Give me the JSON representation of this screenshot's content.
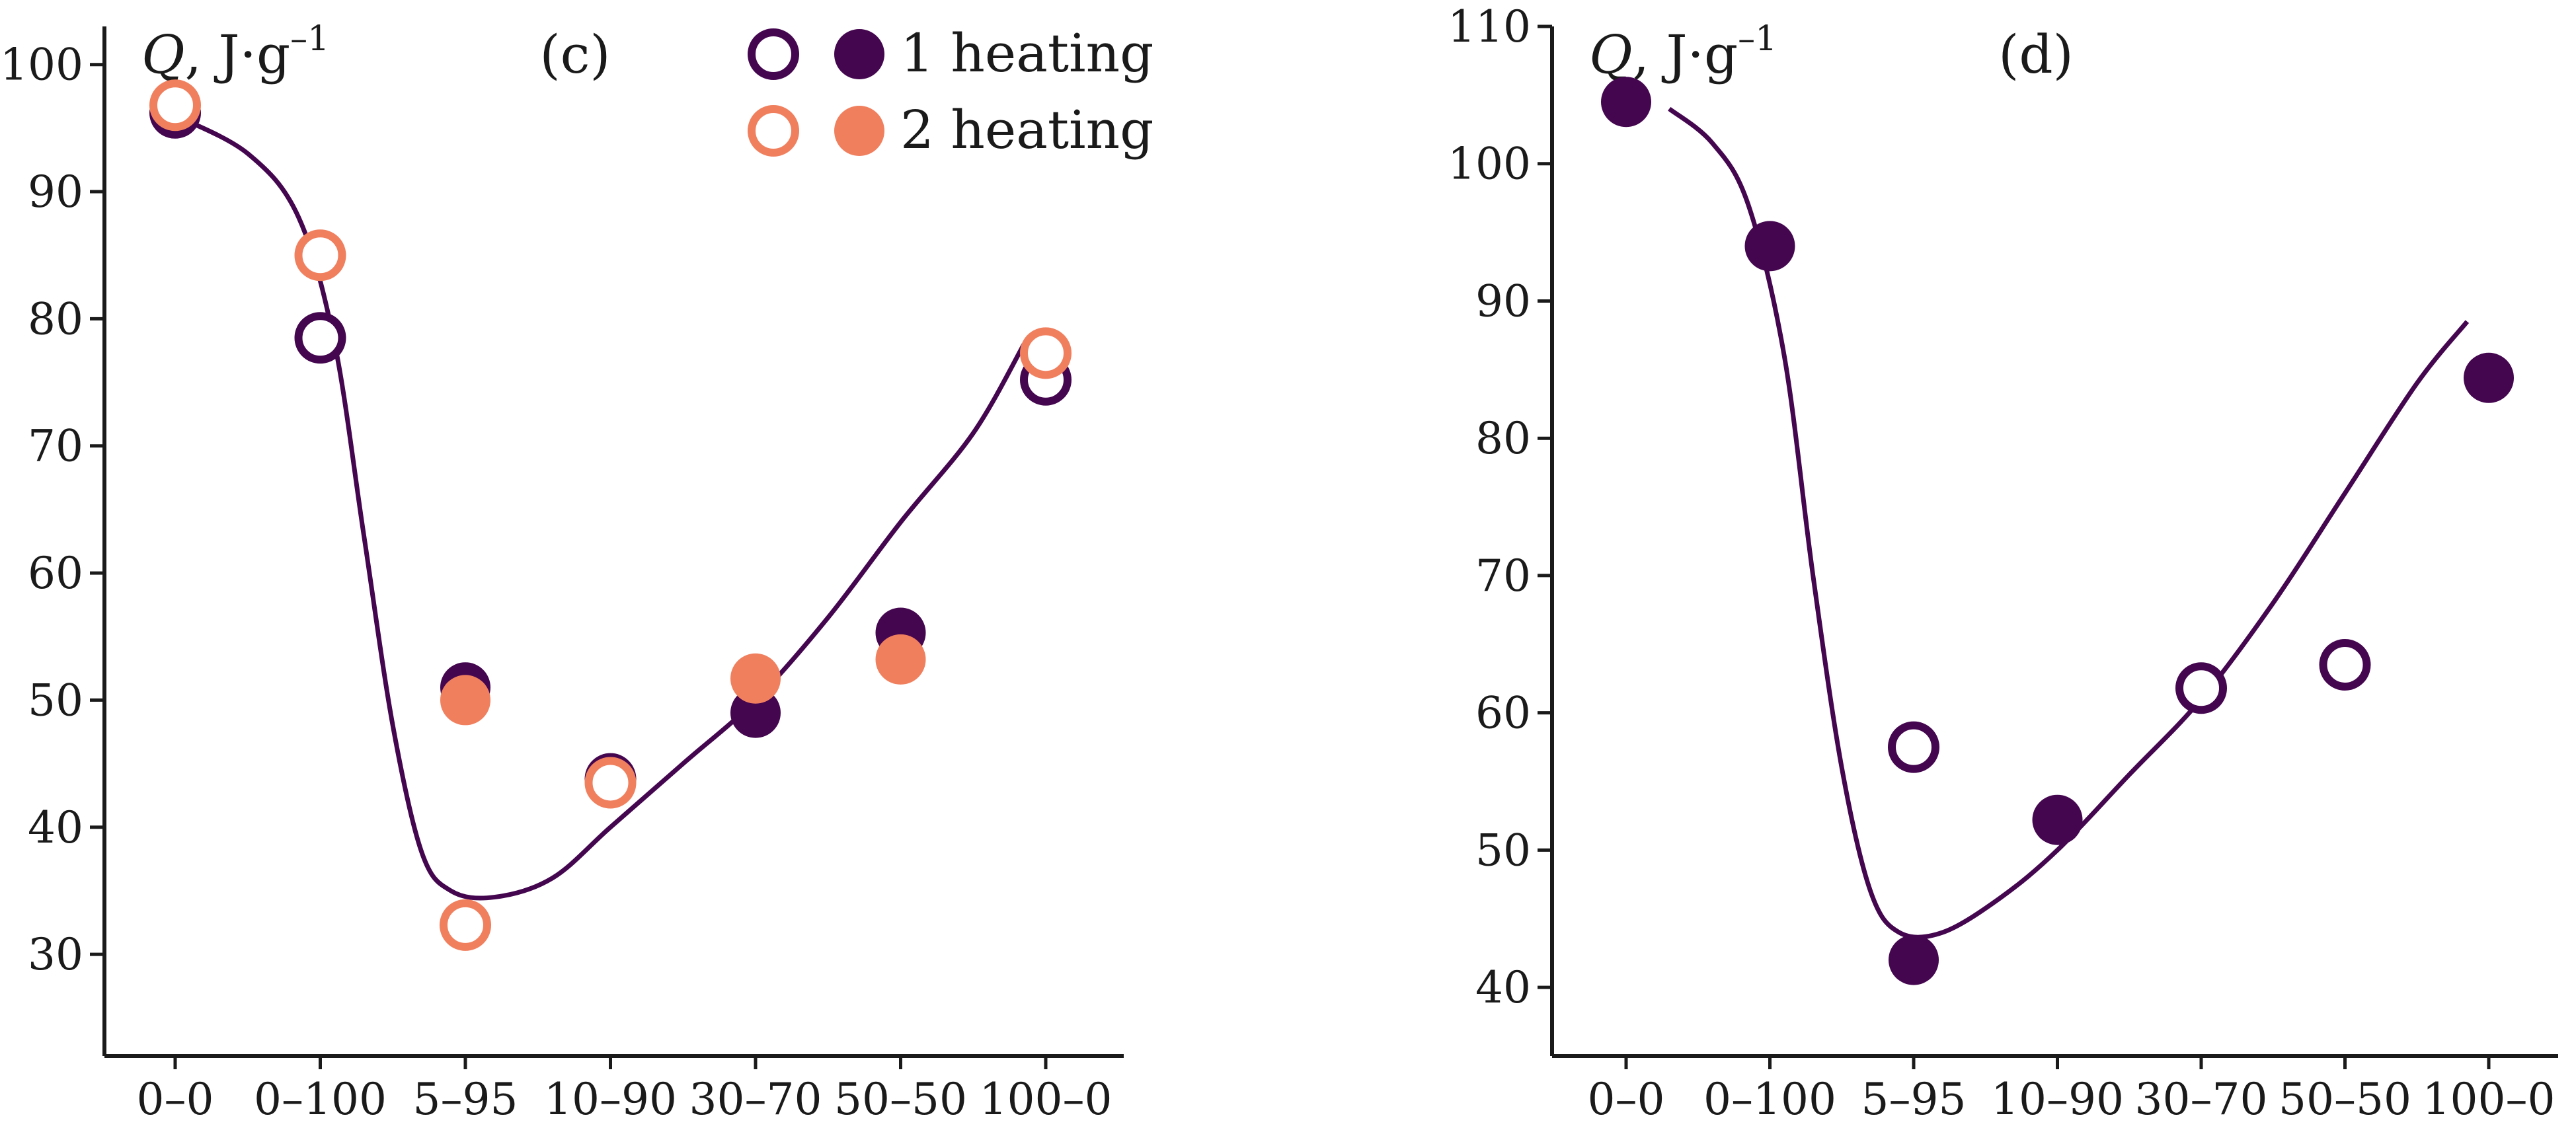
{
  "colors": {
    "series1": "#44064f",
    "series2": "#f07f5e",
    "axis": "#1a1a1a"
  },
  "legend": {
    "items": [
      {
        "label": "1 heating",
        "color": "#44064f"
      },
      {
        "label": "2 heating",
        "color": "#f07f5e"
      }
    ]
  },
  "chart_data": [
    {
      "type": "scatter",
      "panel_label": "(c)",
      "ylabel_q": "Q",
      "ylabel_unit": ", J·g",
      "ylabel_exp": "–1",
      "categories": [
        "0–0",
        "0–100",
        "5–95",
        "10–90",
        "30–70",
        "50–50",
        "100–0"
      ],
      "yticks": [
        30,
        40,
        50,
        60,
        70,
        80,
        90,
        100
      ],
      "ylim": [
        22,
        103
      ],
      "series": [
        {
          "name": "1 heating",
          "color": "#44064f",
          "open": [
            {
              "x": "0–0",
              "y": 96.2
            },
            {
              "x": "0–100",
              "y": 78.5
            },
            {
              "x": "10–90",
              "y": 43.8
            },
            {
              "x": "100–0",
              "y": 75.2
            }
          ],
          "filled": [
            {
              "x": "5–95",
              "y": 51
            },
            {
              "x": "30–70",
              "y": 49
            },
            {
              "x": "50–50",
              "y": 55.3
            }
          ]
        },
        {
          "name": "2 heating",
          "color": "#f07f5e",
          "open": [
            {
              "x": "0–0",
              "y": 96.8
            },
            {
              "x": "0–100",
              "y": 85
            },
            {
              "x": "5–95",
              "y": 32.3
            },
            {
              "x": "10–90",
              "y": 43.5
            },
            {
              "x": "100–0",
              "y": 77.3
            }
          ],
          "filled": [
            {
              "x": "5–95",
              "y": 50
            },
            {
              "x": "30–70",
              "y": 51.7
            },
            {
              "x": "50–50",
              "y": 53.2
            }
          ]
        }
      ],
      "fit_curve": [
        {
          "x": 0,
          "y": 96
        },
        {
          "x": 0.5,
          "y": 93
        },
        {
          "x": 0.85,
          "y": 88
        },
        {
          "x": 1.1,
          "y": 78
        },
        {
          "x": 1.3,
          "y": 63
        },
        {
          "x": 1.5,
          "y": 48
        },
        {
          "x": 1.7,
          "y": 38
        },
        {
          "x": 1.9,
          "y": 35
        },
        {
          "x": 2.2,
          "y": 34.5
        },
        {
          "x": 2.6,
          "y": 36
        },
        {
          "x": 3.0,
          "y": 40
        },
        {
          "x": 3.5,
          "y": 45
        },
        {
          "x": 4.0,
          "y": 50
        },
        {
          "x": 4.5,
          "y": 56.5
        },
        {
          "x": 5.0,
          "y": 64
        },
        {
          "x": 5.5,
          "y": 71
        },
        {
          "x": 5.85,
          "y": 78
        }
      ]
    },
    {
      "type": "scatter",
      "panel_label": "(d)",
      "ylabel_q": "Q",
      "ylabel_unit": ", J·g",
      "ylabel_exp": "–1",
      "categories": [
        "0–0",
        "0–100",
        "5–95",
        "10–90",
        "30–70",
        "50–50",
        "100–0"
      ],
      "yticks": [
        40,
        50,
        60,
        70,
        80,
        90,
        100,
        110
      ],
      "ylim": [
        35,
        110
      ],
      "series": [
        {
          "name": "1 heating",
          "color": "#44064f",
          "open": [
            {
              "x": "5–95",
              "y": 57.5
            },
            {
              "x": "30–70",
              "y": 61.8
            },
            {
              "x": "50–50",
              "y": 63.5
            }
          ],
          "filled": [
            {
              "x": "0–0",
              "y": 104.5
            },
            {
              "x": "0–100",
              "y": 94
            },
            {
              "x": "5–95",
              "y": 42
            },
            {
              "x": "10–90",
              "y": 52.2
            },
            {
              "x": "100–0",
              "y": 84.4
            }
          ]
        }
      ],
      "fit_curve": [
        {
          "x": 0.3,
          "y": 104
        },
        {
          "x": 0.6,
          "y": 101.5
        },
        {
          "x": 0.85,
          "y": 97
        },
        {
          "x": 1.1,
          "y": 86
        },
        {
          "x": 1.3,
          "y": 70
        },
        {
          "x": 1.5,
          "y": 56
        },
        {
          "x": 1.7,
          "y": 47
        },
        {
          "x": 1.9,
          "y": 44
        },
        {
          "x": 2.2,
          "y": 44
        },
        {
          "x": 2.6,
          "y": 46.5
        },
        {
          "x": 3.0,
          "y": 50
        },
        {
          "x": 3.5,
          "y": 55.5
        },
        {
          "x": 4.0,
          "y": 61
        },
        {
          "x": 4.5,
          "y": 68
        },
        {
          "x": 5.0,
          "y": 76
        },
        {
          "x": 5.5,
          "y": 84
        },
        {
          "x": 5.85,
          "y": 88.5
        }
      ]
    }
  ]
}
